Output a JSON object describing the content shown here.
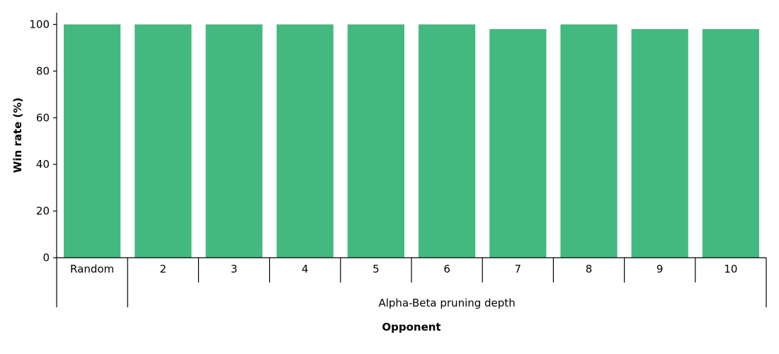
{
  "chart_data": {
    "type": "bar",
    "categories": [
      "Random",
      "2",
      "3",
      "4",
      "5",
      "6",
      "7",
      "8",
      "9",
      "10"
    ],
    "values": [
      100,
      100,
      100,
      100,
      100,
      100,
      98,
      100,
      98,
      98
    ],
    "title": "",
    "xlabel": "Opponent",
    "ylabel": "Win rate (%)",
    "ylim": [
      0,
      105
    ],
    "yticks": [
      0,
      20,
      40,
      60,
      80,
      100
    ],
    "bar_color": "#44b97f",
    "group_label": "Alpha-Beta pruning depth",
    "grid": false
  }
}
